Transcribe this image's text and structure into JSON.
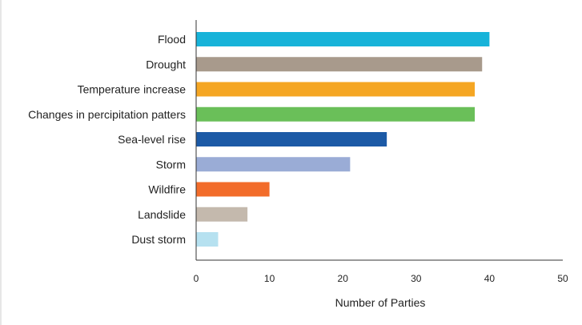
{
  "chart_data": {
    "type": "bar",
    "orientation": "horizontal",
    "categories": [
      "Flood",
      "Drought",
      "Temperature increase",
      "Changes in percipitation patters",
      "Sea-level rise",
      "Storm",
      "Wildfire",
      "Landslide",
      "Dust storm"
    ],
    "values": [
      40,
      39,
      38,
      38,
      26,
      21,
      10,
      7,
      3
    ],
    "colors": [
      "#17b3d9",
      "#a89a8c",
      "#f5a623",
      "#6abf59",
      "#1c5aa6",
      "#9aacd6",
      "#f26c2a",
      "#c4b9ad",
      "#b6e1f0"
    ],
    "xlabel": "Number of Parties",
    "ylabel": "",
    "xlim": [
      0,
      50
    ],
    "xticks": [
      0,
      10,
      20,
      30,
      40,
      50
    ],
    "grid": false
  }
}
